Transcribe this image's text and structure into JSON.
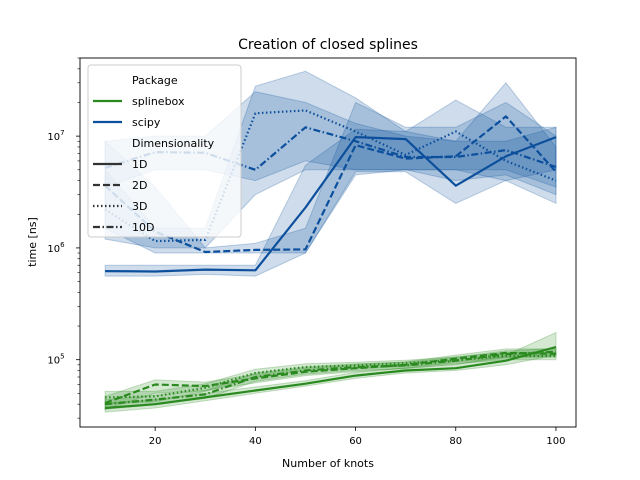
{
  "chart_data": {
    "type": "line",
    "title": "Creation of closed splines",
    "xlabel": "Number of knots",
    "ylabel": "time [ns]",
    "xlim": [
      5,
      104
    ],
    "ylim": [
      25000,
      50000000
    ],
    "y_scale": "log",
    "x_ticks": [
      20,
      40,
      60,
      80,
      100
    ],
    "y_ticks": [
      {
        "value": 100000,
        "base": "10",
        "exp": "5"
      },
      {
        "value": 1000000,
        "base": "10",
        "exp": "6"
      },
      {
        "value": 10000000,
        "base": "10",
        "exp": "7"
      }
    ],
    "x": [
      10,
      20,
      30,
      40,
      50,
      60,
      70,
      80,
      90,
      100
    ],
    "legend": {
      "placement": "upper-left",
      "groups": [
        {
          "title": "Package",
          "entries": [
            {
              "label": "splinebox",
              "color": "#2a8a1f",
              "dash": "solid"
            },
            {
              "label": "scipy",
              "color": "#0c4f9c",
              "dash": "solid"
            }
          ]
        },
        {
          "title": "Dimensionality",
          "entries": [
            {
              "label": "1D",
              "color": "#333333",
              "dash": "solid"
            },
            {
              "label": "2D",
              "color": "#333333",
              "dash": "dashed"
            },
            {
              "label": "3D",
              "color": "#333333",
              "dash": "dotted"
            },
            {
              "label": "10D",
              "color": "#333333",
              "dash": "dashdot"
            }
          ]
        }
      ]
    },
    "series": [
      {
        "package": "scipy",
        "dimensionality": "1D",
        "color": "#0c4f9c",
        "dash": "solid",
        "values": [
          620000,
          615000,
          640000,
          630000,
          2300000,
          9800000,
          9400000,
          3600000,
          6600000,
          9800000
        ],
        "lower": [
          560000,
          560000,
          580000,
          560000,
          900000,
          4800000,
          4800000,
          2500000,
          4000000,
          5000000
        ],
        "upper": [
          700000,
          700000,
          700000,
          700000,
          5500000,
          11500000,
          11000000,
          9000000,
          9000000,
          12000000
        ]
      },
      {
        "package": "scipy",
        "dimensionality": "2D",
        "color": "#0c4f9c",
        "dash": "dashed",
        "values": [
          3600000,
          1400000,
          920000,
          960000,
          970000,
          8300000,
          6300000,
          6600000,
          15000000,
          4800000
        ],
        "lower": [
          1500000,
          900000,
          900000,
          900000,
          900000,
          4500000,
          5000000,
          4000000,
          4500000,
          3000000
        ],
        "upper": [
          9000000,
          3500000,
          1000000,
          1100000,
          1500000,
          20000000,
          12000000,
          12000000,
          20000000,
          10000000
        ]
      },
      {
        "package": "scipy",
        "dimensionality": "3D",
        "color": "#0c4f9c",
        "dash": "dotted",
        "values": [
          2200000,
          1150000,
          1180000,
          16000000,
          17000000,
          11000000,
          6800000,
          11000000,
          6000000,
          4000000
        ],
        "lower": [
          1200000,
          1000000,
          1000000,
          3000000,
          5000000,
          5000000,
          5000000,
          5000000,
          4000000,
          2500000
        ],
        "upper": [
          5000000,
          1500000,
          1500000,
          28000000,
          38000000,
          22000000,
          11000000,
          21000000,
          12000000,
          12000000
        ]
      },
      {
        "package": "scipy",
        "dimensionality": "10D",
        "color": "#0c4f9c",
        "dash": "dashdot",
        "values": [
          5200000,
          7200000,
          7100000,
          5000000,
          12000000,
          9000000,
          6500000,
          6500000,
          7500000,
          5300000
        ],
        "lower": [
          3500000,
          5000000,
          5000000,
          4000000,
          6000000,
          5000000,
          5000000,
          5000000,
          5000000,
          3500000
        ],
        "upper": [
          9000000,
          10000000,
          10000000,
          25000000,
          20000000,
          13000000,
          10000000,
          9000000,
          30000000,
          8000000
        ]
      },
      {
        "package": "splinebox",
        "dimensionality": "1D",
        "color": "#2a8a1f",
        "dash": "solid",
        "values": [
          37000,
          40000,
          46000,
          53000,
          61000,
          72000,
          80000,
          84000,
          98000,
          130000
        ],
        "lower": [
          34000,
          37000,
          43000,
          50000,
          58000,
          68000,
          76000,
          80000,
          90000,
          110000
        ],
        "upper": [
          41000,
          44000,
          50000,
          57000,
          65000,
          77000,
          85000,
          90000,
          110000,
          175000
        ]
      },
      {
        "package": "splinebox",
        "dimensionality": "2D",
        "color": "#2a8a1f",
        "dash": "dashed",
        "values": [
          41000,
          60000,
          58000,
          68000,
          78000,
          84000,
          90000,
          102000,
          115000,
          113000
        ],
        "lower": [
          36000,
          50000,
          53000,
          62000,
          72000,
          78000,
          84000,
          95000,
          105000,
          105000
        ],
        "upper": [
          47000,
          66000,
          63000,
          74000,
          84000,
          90000,
          96000,
          110000,
          125000,
          125000
        ]
      },
      {
        "package": "splinebox",
        "dimensionality": "3D",
        "color": "#2a8a1f",
        "dash": "dotted",
        "values": [
          46000,
          47000,
          56000,
          76000,
          86000,
          89000,
          93000,
          99000,
          108000,
          108000
        ],
        "lower": [
          40000,
          42000,
          52000,
          70000,
          80000,
          83000,
          87000,
          92000,
          100000,
          100000
        ],
        "upper": [
          52000,
          52000,
          61000,
          82000,
          92000,
          95000,
          99000,
          106000,
          116000,
          116000
        ]
      },
      {
        "package": "splinebox",
        "dimensionality": "10D",
        "color": "#2a8a1f",
        "dash": "dashdot",
        "values": [
          40000,
          44000,
          49000,
          70000,
          80000,
          86000,
          89000,
          98000,
          112000,
          118000
        ],
        "lower": [
          36000,
          40000,
          45000,
          64000,
          74000,
          80000,
          83000,
          91000,
          104000,
          110000
        ],
        "upper": [
          44000,
          48000,
          53000,
          76000,
          86000,
          92000,
          95000,
          105000,
          120000,
          126000
        ]
      }
    ]
  }
}
